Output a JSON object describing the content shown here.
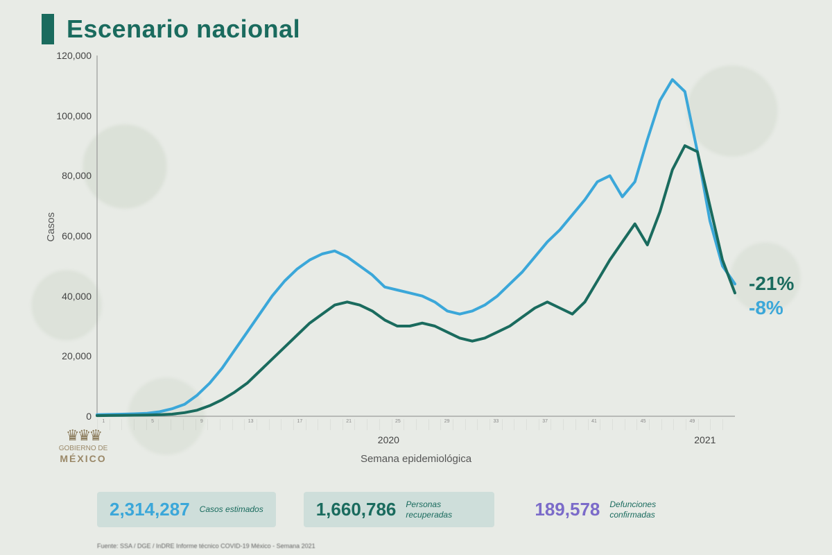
{
  "title": "Escenario nacional",
  "chart": {
    "type": "line",
    "ylabel": "Casos",
    "xlabel": "Semana epidemiológica",
    "ylim": [
      0,
      120000
    ],
    "ytick_step": 20000,
    "yticks": [
      "0",
      "20,000",
      "40,000",
      "60,000",
      "80,000",
      "100,000",
      "120,000"
    ],
    "x_count": 52,
    "year_labels": {
      "y2020": "2020",
      "y2021": "2021"
    },
    "background_color": "#e8ebe6",
    "axis_color": "#888888",
    "line_width": 4,
    "series": [
      {
        "name": "estimados",
        "color": "#3ba7d9",
        "end_label": "-8%",
        "values": [
          500,
          600,
          700,
          800,
          1000,
          1500,
          2500,
          4000,
          7000,
          11000,
          16000,
          22000,
          28000,
          34000,
          40000,
          45000,
          49000,
          52000,
          54000,
          55000,
          53000,
          50000,
          47000,
          43000,
          42000,
          41000,
          40000,
          38000,
          35000,
          34000,
          35000,
          37000,
          40000,
          44000,
          48000,
          53000,
          58000,
          62000,
          67000,
          72000,
          78000,
          80000,
          73000,
          78000,
          92000,
          105000,
          112000,
          108000,
          88000,
          65000,
          50000,
          44000
        ]
      },
      {
        "name": "confirmados",
        "color": "#1a6b5e",
        "end_label": "-21%",
        "values": [
          200,
          250,
          300,
          350,
          400,
          500,
          700,
          1200,
          2000,
          3500,
          5500,
          8000,
          11000,
          15000,
          19000,
          23000,
          27000,
          31000,
          34000,
          37000,
          38000,
          37000,
          35000,
          32000,
          30000,
          30000,
          31000,
          30000,
          28000,
          26000,
          25000,
          26000,
          28000,
          30000,
          33000,
          36000,
          38000,
          36000,
          34000,
          38000,
          45000,
          52000,
          58000,
          64000,
          57000,
          68000,
          82000,
          90000,
          88000,
          70000,
          52000,
          41000
        ]
      }
    ],
    "end_labels": {
      "dark": {
        "text": "-21%",
        "color": "#1a6b5e",
        "y_value": 44000
      },
      "light": {
        "text": "-8%",
        "color": "#3ba7d9",
        "y_value": 36000
      }
    }
  },
  "logo": {
    "line1": "GOBIERNO DE",
    "line2": "MÉXICO"
  },
  "stats": [
    {
      "value": "2,314,287",
      "label": "Casos estimados",
      "value_color": "#3ba7d9",
      "label_color": "#1a6b5e",
      "bg": "rgba(180,210,205,0.5)"
    },
    {
      "value": "1,660,786",
      "label": "Personas recuperadas",
      "value_color": "#1a6b5e",
      "label_color": "#1a6b5e",
      "bg": "rgba(180,210,205,0.5)"
    },
    {
      "value": "189,578",
      "label": "Defunciones confirmadas",
      "value_color": "#7b6bc9",
      "label_color": "#1a6b5e",
      "bg": "transparent"
    }
  ],
  "footer": "Fuente: SSA / DGE / InDRE Informe técnico COVID-19 México - Semana 2021"
}
